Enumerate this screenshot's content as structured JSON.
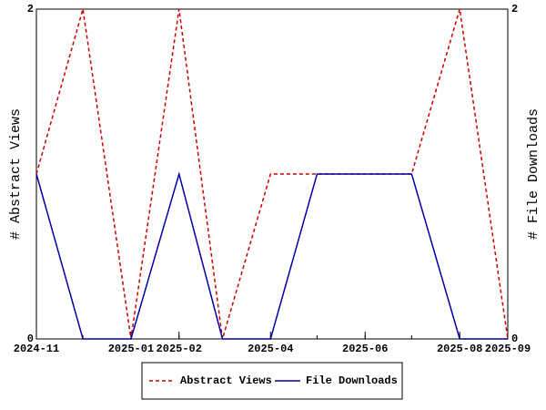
{
  "chart_data": {
    "type": "line",
    "x": [
      "2024-11",
      "2024-12",
      "2025-01",
      "2025-02",
      "2025-03",
      "2025-04",
      "2025-05",
      "2025-06",
      "2025-07",
      "2025-08",
      "2025-09"
    ],
    "xlim": [
      "2024-11",
      "2025-09"
    ],
    "xticks": [
      "2024-11",
      "2025-01",
      "2025-02",
      "2025-04",
      "2025-06",
      "2025-08",
      "2025-09"
    ],
    "ylabel": "# Abstract Views",
    "y2label": "# File Downloads",
    "ylim": [
      0,
      2
    ],
    "yticks": [
      0,
      2
    ],
    "y2lim": [
      0,
      2
    ],
    "y2ticks": [
      0,
      2
    ],
    "legend": "bottom",
    "series": [
      {
        "name": "Abstract Views",
        "color": "#cc0000",
        "dashed": true,
        "values": [
          1,
          2,
          0,
          2,
          0,
          1,
          1,
          1,
          1,
          2,
          0
        ]
      },
      {
        "name": "File Downloads",
        "color": "#0000aa",
        "axis": "y2",
        "values": [
          1,
          0,
          0,
          1,
          0,
          0,
          1,
          1,
          1,
          0,
          0
        ]
      }
    ]
  }
}
